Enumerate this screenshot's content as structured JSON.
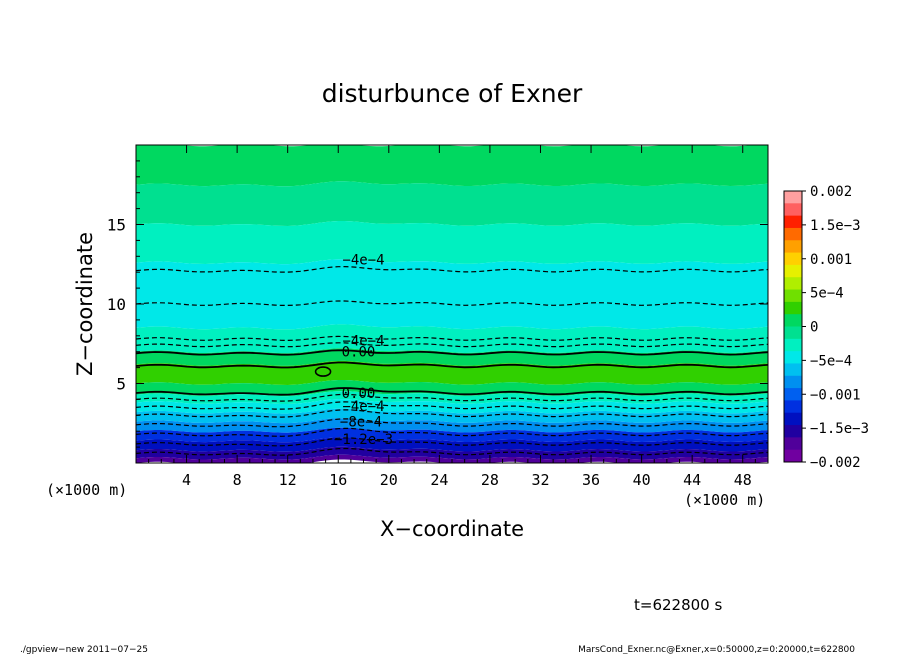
{
  "chart_data": {
    "type": "heatmap",
    "title": "disturbunce of Exner",
    "xlabel": "X−coordinate",
    "ylabel": "Z−coordinate",
    "x_unit": "(×1000 m)",
    "y_unit": "(×1000 m)",
    "xlim": [
      0,
      50
    ],
    "ylim": [
      0,
      20
    ],
    "x_ticks": [
      "4",
      "8",
      "12",
      "16",
      "20",
      "24",
      "28",
      "32",
      "36",
      "40",
      "44",
      "48"
    ],
    "x_tick_values": [
      4,
      8,
      12,
      16,
      20,
      24,
      28,
      32,
      36,
      40,
      44,
      48
    ],
    "y_ticks": [
      "5",
      "10",
      "15"
    ],
    "y_tick_values": [
      5,
      10,
      15
    ],
    "colorbar": {
      "labels": [
        "0.002",
        "1.5e−3",
        "0.001",
        "5e−4",
        "0",
        "−5e−4",
        "−0.001",
        "−1.5e−3",
        "−0.002"
      ],
      "values": [
        0.002,
        0.0015,
        0.001,
        0.0005,
        0,
        -0.0005,
        -0.001,
        -0.0015,
        -0.002
      ],
      "colors": [
        "#ffa0a0",
        "#ff6060",
        "#ff2000",
        "#ff6a00",
        "#ffa000",
        "#ffd000",
        "#e6f000",
        "#b0ee00",
        "#70e000",
        "#30d000",
        "#00d860",
        "#00e090",
        "#00f0c0",
        "#00e8e8",
        "#00c0f0",
        "#0090f0",
        "#0060f0",
        "#0030e0",
        "#0010c0",
        "#2000a0",
        "#50009a",
        "#7000a0"
      ]
    },
    "contour_labels": [
      {
        "text": "−4e−4",
        "x": 18.0,
        "z": 12.8
      },
      {
        "text": "−4e−4",
        "x": 18.0,
        "z": 7.7
      },
      {
        "text": "0.00",
        "x": 17.6,
        "z": 7.0
      },
      {
        "text": "0.00",
        "x": 17.6,
        "z": 4.4
      },
      {
        "text": "−4e−4",
        "x": 18.0,
        "z": 3.6
      },
      {
        "text": "−8e−4",
        "x": 17.8,
        "z": 2.6
      },
      {
        "text": "−1.2e−3",
        "x": 18.0,
        "z": 1.5
      }
    ],
    "bands": [
      {
        "z0": 17.5,
        "z1": 20.0,
        "value": 5e-05
      },
      {
        "z0": 15.0,
        "z1": 17.5,
        "value": -0.0001
      },
      {
        "z0": 12.6,
        "z1": 15.0,
        "value": -0.0002
      },
      {
        "z0": 10.0,
        "z1": 12.6,
        "value": -0.0004
      },
      {
        "z0": 8.5,
        "z1": 10.0,
        "value": -0.0005
      },
      {
        "z0": 7.0,
        "z1": 8.5,
        "value": -0.0003
      },
      {
        "z0": 6.2,
        "z1": 7.0,
        "value": 0.0001
      },
      {
        "z0": 5.0,
        "z1": 6.2,
        "value": 0.00025
      },
      {
        "z0": 4.3,
        "z1": 5.0,
        "value": 0.0001
      },
      {
        "z0": 3.8,
        "z1": 4.3,
        "value": -0.0002
      },
      {
        "z0": 3.2,
        "z1": 3.8,
        "value": -0.0004
      },
      {
        "z0": 2.6,
        "z1": 3.2,
        "value": -0.0006
      },
      {
        "z0": 2.0,
        "z1": 2.6,
        "value": -0.0009
      },
      {
        "z0": 1.4,
        "z1": 2.0,
        "value": -0.0011
      },
      {
        "z0": 0.8,
        "z1": 1.4,
        "value": -0.0013
      },
      {
        "z0": 0.3,
        "z1": 0.8,
        "value": -0.0015
      },
      {
        "z0": 0.0,
        "z1": 0.3,
        "value": -0.0017
      }
    ],
    "contours": [
      {
        "z": 12.1,
        "dashed": true,
        "bump": 0.6
      },
      {
        "z": 10.0,
        "dashed": true,
        "bump": 0.4
      },
      {
        "z": 7.8,
        "dashed": true,
        "bump": 0.3
      },
      {
        "z": 7.4,
        "dashed": true,
        "bump": 0.3
      },
      {
        "z": 6.9,
        "dashed": false,
        "bump": 0.4
      },
      {
        "z": 6.1,
        "dashed": false,
        "bump": 0.5
      },
      {
        "z": 4.4,
        "dashed": false,
        "bump": 0.8
      },
      {
        "z": 4.0,
        "dashed": true,
        "bump": 0.8
      },
      {
        "z": 3.5,
        "dashed": true,
        "bump": 0.9
      },
      {
        "z": 3.0,
        "dashed": true,
        "bump": 0.9
      },
      {
        "z": 2.4,
        "dashed": true,
        "bump": 1.0
      },
      {
        "z": 1.8,
        "dashed": true,
        "bump": 1.0
      },
      {
        "z": 1.2,
        "dashed": true,
        "bump": 1.0
      },
      {
        "z": 0.6,
        "dashed": true,
        "bump": 0.8
      }
    ],
    "time_label": "t=622800 s"
  },
  "footer": {
    "left": "./gpview−new   2011−07−25",
    "right": "MarsCond_Exner.nc@Exner,x=0:50000,z=0:20000,t=622800"
  }
}
